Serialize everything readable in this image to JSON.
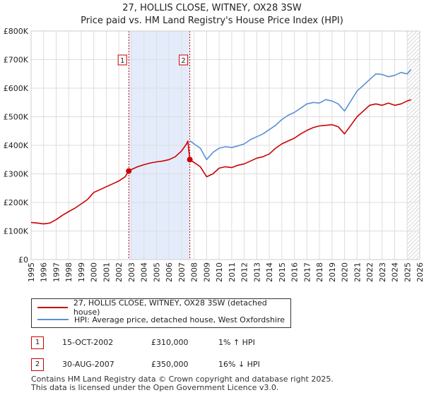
{
  "title": "27, HOLLIS CLOSE, WITNEY, OX28 3SW",
  "subtitle": "Price paid vs. HM Land Registry's House Price Index (HPI)",
  "colors": {
    "red": "#cc0000",
    "blue": "#5b8fd6",
    "shade": "#e4ecfb",
    "grid": "#dddddd"
  },
  "legend": {
    "property": "27, HOLLIS CLOSE, WITNEY, OX28 3SW (detached house)",
    "hpi": "HPI: Average price, detached house, West Oxfordshire"
  },
  "transactions": [
    {
      "num": "1",
      "date": "15-OCT-2002",
      "price": "£310,000",
      "hpi": "1% ↑ HPI"
    },
    {
      "num": "2",
      "date": "30-AUG-2007",
      "price": "£350,000",
      "hpi": "16% ↓ HPI"
    }
  ],
  "footer": {
    "line1": "Contains HM Land Registry data © Crown copyright and database right 2025.",
    "line2": "This data is licensed under the Open Government Licence v3.0."
  },
  "chart_data": {
    "type": "line",
    "title": "27, HOLLIS CLOSE, WITNEY, OX28 3SW",
    "xlim": [
      1995,
      2026
    ],
    "ylim": [
      0,
      800000
    ],
    "x_ticks": [
      1995,
      1996,
      1997,
      1998,
      1999,
      2000,
      2001,
      2002,
      2003,
      2004,
      2005,
      2006,
      2007,
      2008,
      2009,
      2010,
      2011,
      2012,
      2013,
      2014,
      2015,
      2016,
      2017,
      2018,
      2019,
      2020,
      2021,
      2022,
      2023,
      2024,
      2025,
      2026
    ],
    "y_ticks": [
      0,
      100000,
      200000,
      300000,
      400000,
      500000,
      600000,
      700000,
      800000
    ],
    "y_tick_labels": [
      "£0",
      "£100K",
      "£200K",
      "£300K",
      "£400K",
      "£500K",
      "£600K",
      "£700K",
      "£800K"
    ],
    "grid": true,
    "shaded_period": [
      2002.79,
      2007.66
    ],
    "hatched_from": 2025.0,
    "markers": [
      {
        "label": "1",
        "x": 2002.79,
        "y": 310000
      },
      {
        "label": "2",
        "x": 2007.66,
        "y": 350000
      }
    ],
    "series": [
      {
        "name": "27, HOLLIS CLOSE, WITNEY, OX28 3SW (detached house)",
        "color": "#cc0000",
        "x": [
          1995.0,
          1995.5,
          1996.0,
          1996.5,
          1997.0,
          1997.5,
          1998.0,
          1998.5,
          1999.0,
          1999.5,
          2000.0,
          2000.5,
          2001.0,
          2001.5,
          2002.0,
          2002.5,
          2002.79,
          2003.0,
          2003.5,
          2004.0,
          2004.5,
          2005.0,
          2005.5,
          2006.0,
          2006.5,
          2007.0,
          2007.4,
          2007.5,
          2007.66,
          2008.0,
          2008.5,
          2009.0,
          2009.5,
          2010.0,
          2010.5,
          2011.0,
          2011.5,
          2012.0,
          2012.5,
          2013.0,
          2013.5,
          2014.0,
          2014.5,
          2015.0,
          2015.5,
          2016.0,
          2016.5,
          2017.0,
          2017.5,
          2018.0,
          2018.5,
          2019.0,
          2019.5,
          2020.0,
          2020.5,
          2021.0,
          2021.5,
          2022.0,
          2022.5,
          2023.0,
          2023.5,
          2024.0,
          2024.5,
          2025.0,
          2025.3
        ],
        "values": [
          130000,
          128000,
          125000,
          128000,
          140000,
          155000,
          168000,
          180000,
          195000,
          210000,
          235000,
          245000,
          255000,
          265000,
          275000,
          290000,
          310000,
          315000,
          325000,
          332000,
          338000,
          342000,
          345000,
          350000,
          360000,
          380000,
          405000,
          415000,
          350000,
          340000,
          325000,
          290000,
          300000,
          320000,
          325000,
          322000,
          330000,
          335000,
          345000,
          355000,
          360000,
          370000,
          390000,
          405000,
          415000,
          425000,
          440000,
          452000,
          462000,
          468000,
          470000,
          472000,
          465000,
          440000,
          470000,
          500000,
          520000,
          540000,
          545000,
          540000,
          548000,
          540000,
          545000,
          555000,
          560000
        ]
      },
      {
        "name": "HPI: Average price, detached house, West Oxfordshire",
        "color": "#5b8fd6",
        "x": [
          2007.66,
          2007.8,
          2008.0,
          2008.5,
          2009.0,
          2009.5,
          2010.0,
          2010.5,
          2011.0,
          2011.5,
          2012.0,
          2012.5,
          2013.0,
          2013.5,
          2014.0,
          2014.5,
          2015.0,
          2015.5,
          2016.0,
          2016.5,
          2017.0,
          2017.5,
          2018.0,
          2018.5,
          2019.0,
          2019.5,
          2020.0,
          2020.5,
          2021.0,
          2021.5,
          2022.0,
          2022.5,
          2023.0,
          2023.5,
          2024.0,
          2024.5,
          2025.0,
          2025.3
        ],
        "values": [
          415000,
          412000,
          405000,
          390000,
          350000,
          375000,
          390000,
          395000,
          392000,
          398000,
          405000,
          420000,
          430000,
          440000,
          455000,
          470000,
          490000,
          505000,
          515000,
          530000,
          545000,
          550000,
          548000,
          560000,
          555000,
          545000,
          520000,
          555000,
          590000,
          610000,
          630000,
          650000,
          648000,
          640000,
          645000,
          655000,
          650000,
          665000
        ]
      }
    ]
  }
}
